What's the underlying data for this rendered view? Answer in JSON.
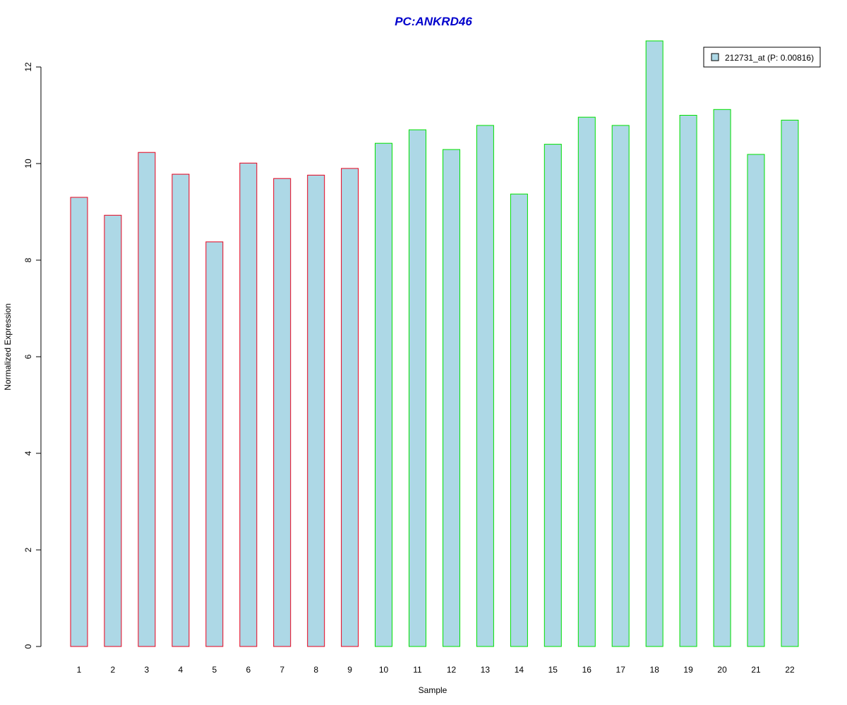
{
  "chart_data": {
    "type": "bar",
    "title": "PC:ANKRD46",
    "title_color": "#0000CC",
    "xlabel": "Sample",
    "ylabel": "Normalized Expression",
    "ylim": [
      0,
      12.6
    ],
    "yticks": [
      0,
      2,
      4,
      6,
      8,
      10,
      12
    ],
    "categories": [
      "1",
      "2",
      "3",
      "4",
      "5",
      "6",
      "7",
      "8",
      "9",
      "10",
      "11",
      "12",
      "13",
      "14",
      "15",
      "16",
      "17",
      "18",
      "19",
      "20",
      "21",
      "22"
    ],
    "values": [
      9.3,
      8.93,
      10.23,
      9.78,
      8.38,
      10.01,
      9.69,
      9.76,
      9.9,
      10.42,
      10.7,
      10.29,
      10.79,
      9.37,
      10.4,
      10.96,
      10.79,
      12.54,
      11.0,
      11.12,
      10.19,
      10.9
    ],
    "group": [
      "red",
      "red",
      "red",
      "red",
      "red",
      "red",
      "red",
      "red",
      "red",
      "green",
      "green",
      "green",
      "green",
      "green",
      "green",
      "green",
      "green",
      "green",
      "green",
      "green",
      "green",
      "green"
    ],
    "bar_fill": "#ADD8E6",
    "border_colors": {
      "red": "#E8001C",
      "green": "#00E000"
    },
    "series": [
      {
        "name": "212731_at (P: 0.00816)",
        "values": [
          9.3,
          8.93,
          10.23,
          9.78,
          8.38,
          10.01,
          9.69,
          9.76,
          9.9,
          10.42,
          10.7,
          10.29,
          10.79,
          9.37,
          10.4,
          10.96,
          10.79,
          12.54,
          11.0,
          11.12,
          10.19,
          10.9
        ]
      }
    ],
    "legend": {
      "position": "top-right",
      "entries": [
        "212731_at (P: 0.00816)"
      ]
    },
    "grid": false
  }
}
